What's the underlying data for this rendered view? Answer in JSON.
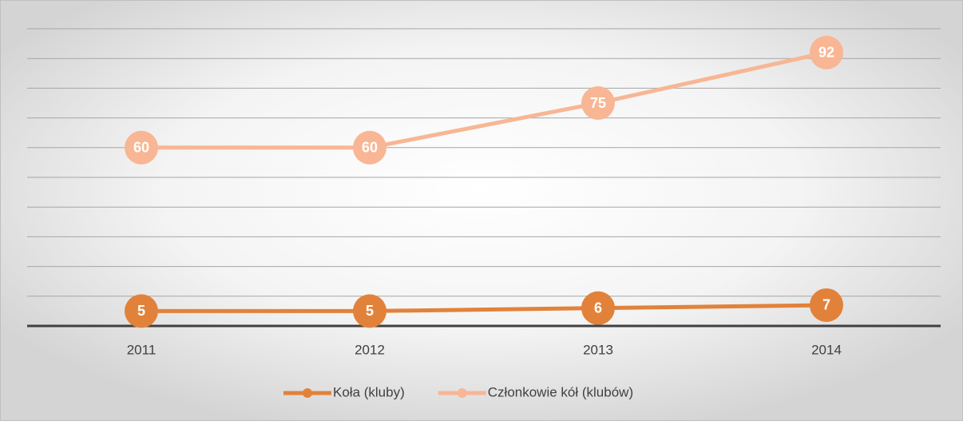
{
  "chart_data": {
    "type": "line",
    "categories": [
      "2011",
      "2012",
      "2013",
      "2014"
    ],
    "series": [
      {
        "name": "Koła (kluby)",
        "color": "#e2823a",
        "values": [
          5,
          5,
          6,
          7
        ]
      },
      {
        "name": "Członkowie kół (klubów)",
        "color": "#f8b694",
        "values": [
          60,
          60,
          75,
          92
        ]
      }
    ],
    "ylim": [
      0,
      100
    ],
    "yticks": [
      0,
      10,
      20,
      30,
      40,
      50,
      60,
      70,
      80,
      90,
      100
    ],
    "grid": true,
    "legend": "bottom"
  }
}
